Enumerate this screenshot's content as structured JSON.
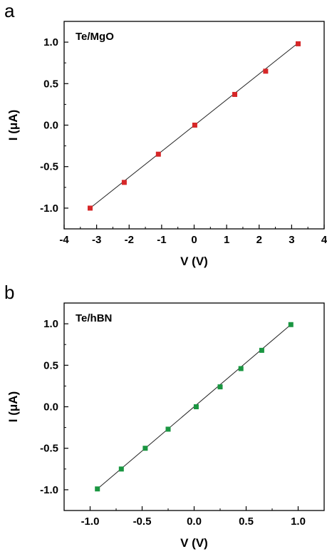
{
  "chart_data": [
    {
      "panel_label": "a",
      "type": "scatter",
      "annotation": "Te/MgO",
      "xlabel": "V (V)",
      "ylabel": "I (μA)",
      "xlim": [
        -4,
        4
      ],
      "ylim": [
        -1.25,
        1.25
      ],
      "xticks": [
        -4,
        -3,
        -2,
        -1,
        0,
        1,
        2,
        3,
        4
      ],
      "xtick_labels": [
        "-4",
        "-3",
        "-2",
        "-1",
        "0",
        "1",
        "2",
        "3",
        "4"
      ],
      "yticks": [
        -1.0,
        -0.5,
        0.0,
        0.5,
        1.0
      ],
      "ytick_labels": [
        "-1.0",
        "-0.5",
        "0.0",
        "0.5",
        "1.0"
      ],
      "grid": false,
      "marker_color": "#d62728",
      "x": [
        -3.2,
        -2.15,
        -1.1,
        0.02,
        1.25,
        2.2,
        3.2
      ],
      "y": [
        -1.0,
        -0.69,
        -0.35,
        0.0,
        0.37,
        0.65,
        0.98
      ],
      "fit_line": {
        "x": [
          -3.2,
          3.2
        ],
        "y": [
          -1.0,
          0.99
        ]
      }
    },
    {
      "panel_label": "b",
      "type": "scatter",
      "annotation": "Te/hBN",
      "xlabel": "V (V)",
      "ylabel": "I (μA)",
      "xlim": [
        -1.25,
        1.25
      ],
      "ylim": [
        -1.25,
        1.25
      ],
      "xticks": [
        -1.0,
        -0.5,
        0.0,
        0.5,
        1.0
      ],
      "xtick_labels": [
        "-1.0",
        "-0.5",
        "0.0",
        "0.5",
        "1.0"
      ],
      "yticks": [
        -1.0,
        -0.5,
        0.0,
        0.5,
        1.0
      ],
      "ytick_labels": [
        "-1.0",
        "-0.5",
        "0.0",
        "0.5",
        "1.0"
      ],
      "grid": false,
      "marker_color": "#1a9641",
      "x": [
        -0.93,
        -0.7,
        -0.47,
        -0.25,
        0.02,
        0.25,
        0.45,
        0.65,
        0.93
      ],
      "y": [
        -0.99,
        -0.75,
        -0.5,
        -0.27,
        0.0,
        0.24,
        0.46,
        0.68,
        0.99
      ],
      "fit_line": {
        "x": [
          -0.93,
          0.93
        ],
        "y": [
          -0.99,
          0.99
        ]
      }
    }
  ]
}
